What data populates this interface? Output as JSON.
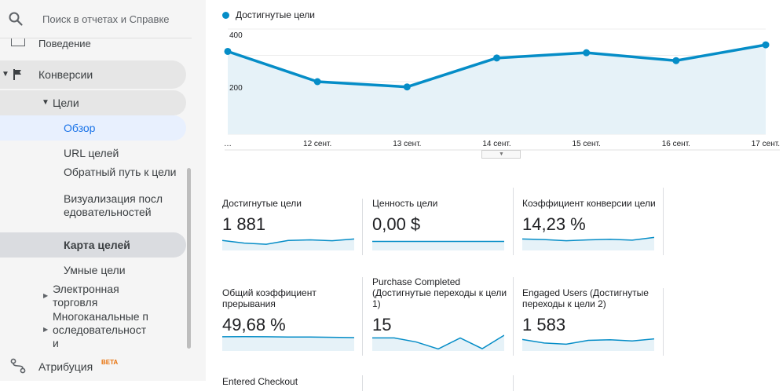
{
  "search": {
    "placeholder": "Поиск в отчетах и Справке",
    "icon": "search-icon"
  },
  "sidebar": {
    "cut_item": "Поведение",
    "conversions": "Конверсии",
    "goals": "Цели",
    "overview": "Обзор",
    "goal_urls": "URL целей",
    "reverse_path": "Обратный путь к цели",
    "funnel_viz": "Визуализация последовательностей",
    "goal_flow": "Карта целей",
    "smart_goals": "Умные цели",
    "ecommerce": "Электронная торговля",
    "multichannel": "Многоканальные последовательности",
    "attribution": "Атрибуция",
    "beta": "BETA"
  },
  "chart_data": {
    "type": "area",
    "legend": "Достигнутые цели",
    "color": "#058dc7",
    "fill": "#e6f2f8",
    "x": [
      "…",
      "12 сент.",
      "13 сент.",
      "14 сент.",
      "15 сент.",
      "16 сент.",
      "17 сент."
    ],
    "series": [
      {
        "name": "Достигнутые цели",
        "values": [
          315,
          200,
          180,
          290,
          310,
          280,
          340
        ]
      }
    ],
    "y_ticks": [
      200,
      400
    ],
    "ylim": [
      0,
      400
    ],
    "grid": true
  },
  "tiles": [
    {
      "label": "Достигнутые цели",
      "value": "1 881",
      "spark": [
        0.62,
        0.44,
        0.36,
        0.62,
        0.66,
        0.6,
        0.72
      ]
    },
    {
      "label": "Ценность цели",
      "value": "0,00 $",
      "spark": [
        0.55,
        0.55,
        0.55,
        0.55,
        0.55,
        0.55,
        0.55
      ]
    },
    {
      "label": "Коэффициент конверсии цели",
      "value": "14,23 %",
      "spark": [
        0.72,
        0.68,
        0.6,
        0.66,
        0.7,
        0.64,
        0.82
      ]
    },
    {
      "label": "Общий коэффициент прерывания",
      "value": "49,68 %",
      "spark": [
        0.9,
        0.91,
        0.9,
        0.88,
        0.88,
        0.86,
        0.84
      ]
    },
    {
      "label": "Purchase Completed (Достигнутые переходы к цели 1)",
      "value": "15",
      "spark": [
        0.82,
        0.82,
        0.55,
        0.08,
        0.82,
        0.1,
        1.0
      ]
    },
    {
      "label": "Engaged Users (Достигнутые переходы к цели 2)",
      "value": "1 583",
      "spark": [
        0.72,
        0.48,
        0.4,
        0.66,
        0.7,
        0.62,
        0.76
      ]
    },
    {
      "label": "Entered Checkout",
      "value": ""
    }
  ]
}
